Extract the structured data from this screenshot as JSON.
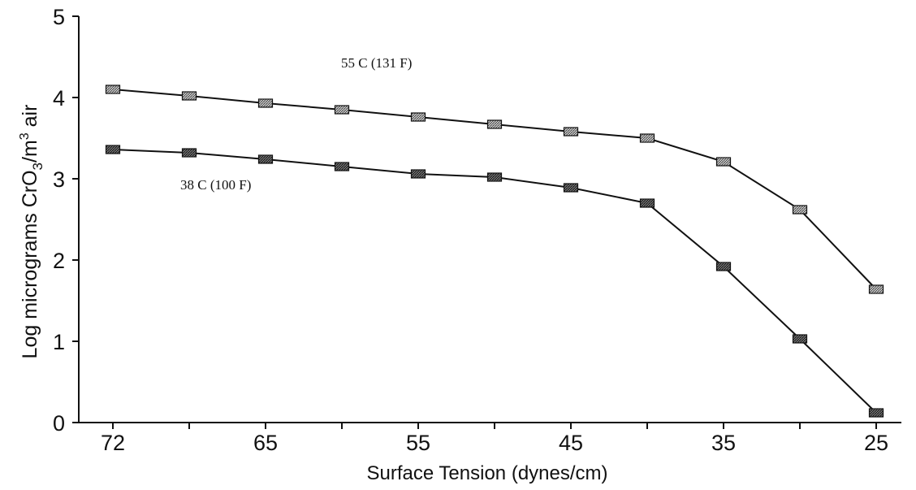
{
  "chart_data": {
    "type": "line",
    "title": "",
    "xlabel": "Surface Tension (dynes/cm)",
    "ylabel": {
      "main": "Log micrograms CrO",
      "sub": "3",
      "mid": "/m",
      "sup": "3",
      "tail": " air"
    },
    "x_tick_labels": [
      "72",
      "65",
      "55",
      "45",
      "35",
      "25"
    ],
    "y_tick_labels": [
      "0",
      "1",
      "2",
      "3",
      "4",
      "5"
    ],
    "ylim": [
      0,
      5
    ],
    "grid": false,
    "legend": "none",
    "series": [
      {
        "name": "55 C (131 F)",
        "marker": "square-hatched-light",
        "values": [
          4.1,
          4.02,
          3.93,
          3.85,
          3.76,
          3.67,
          3.58,
          3.5,
          3.21,
          2.62,
          1.64
        ]
      },
      {
        "name": "38 C (100 F)",
        "marker": "square-hatched-dark",
        "values": [
          3.36,
          3.32,
          3.24,
          3.15,
          3.06,
          3.02,
          2.89,
          2.7,
          1.92,
          1.03,
          0.12
        ]
      }
    ]
  }
}
